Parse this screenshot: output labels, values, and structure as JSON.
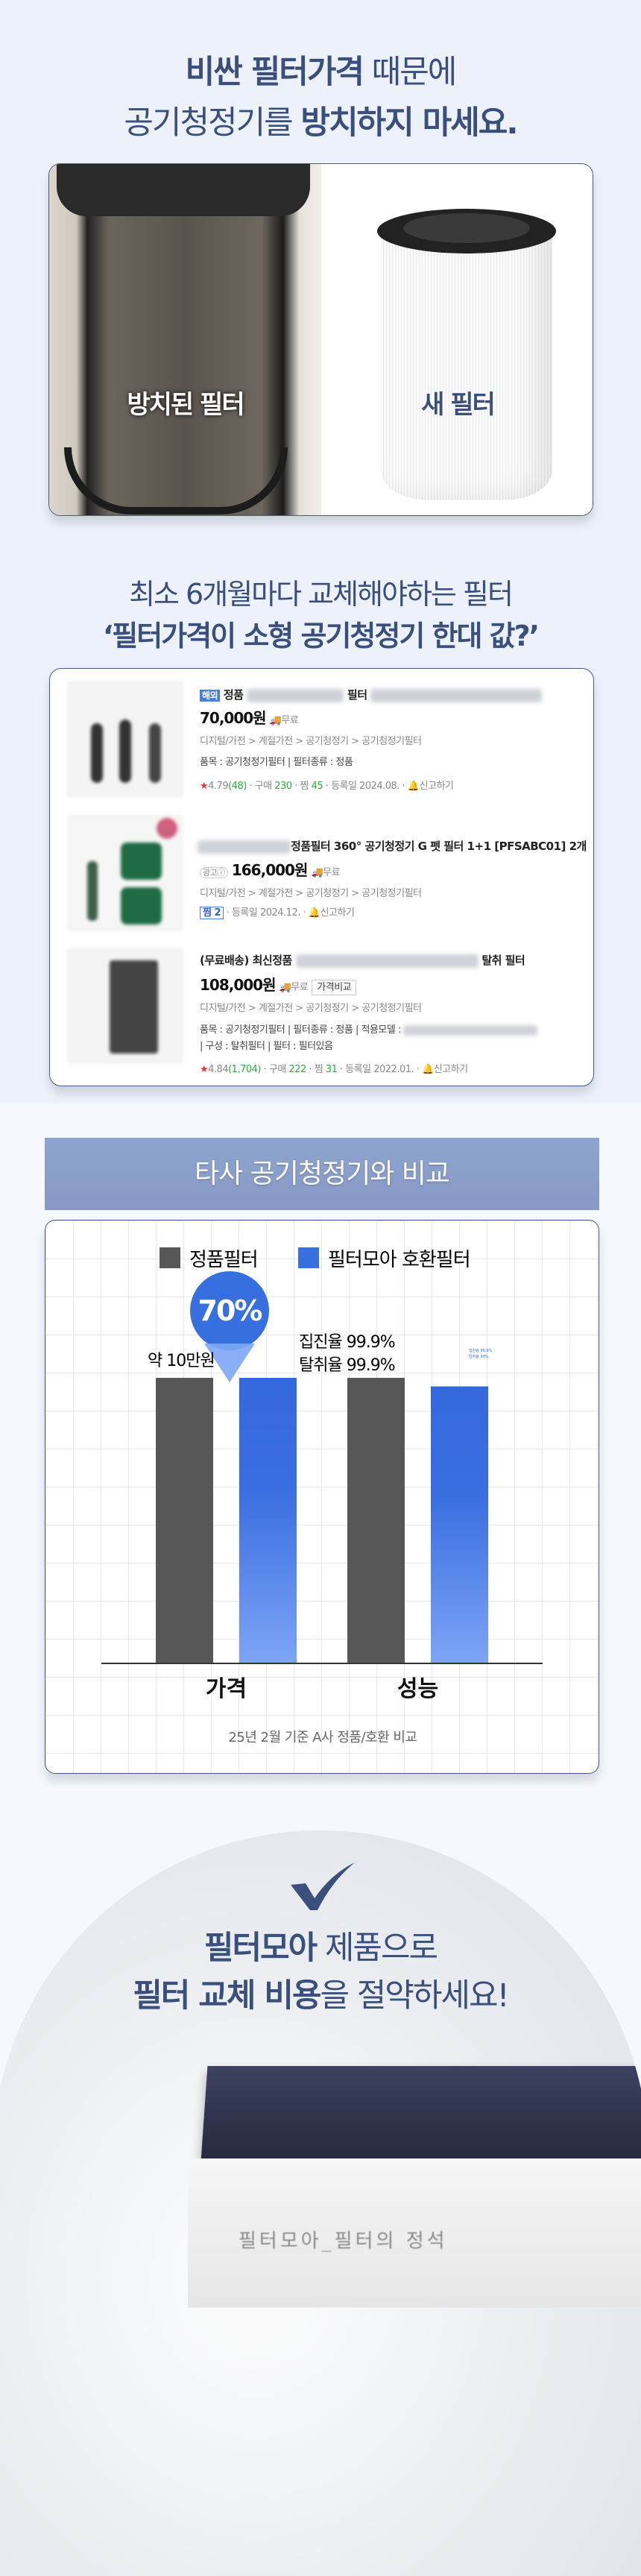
{
  "hero": {
    "line1_bold": "비싼 필터가격",
    "line1_regular": " 때문에",
    "line2_regular": "공기청정기를 ",
    "line2_bold": "방치하지 마세요."
  },
  "photos": {
    "left_label": "방치된 필터",
    "right_label": "새 필터"
  },
  "subtitle": {
    "line1": "최소 6개월마다 교체해야하는 필터",
    "line2": "‘필터가격이 소형 공기청정기 한대 값?’"
  },
  "listings": [
    {
      "badge": "해외",
      "title_a": "정품",
      "title_b": "필터",
      "price": "70,000원",
      "shipping": "무료",
      "category": "디지털/가전 > 계절가전 > 공기청정기 > 공기청정기필터",
      "spec": "품목 : 공기청정기필터 | 필터종류 : 정품",
      "rating": "4.79",
      "reviews": "(48)",
      "purchase_label": "구매",
      "purchases": "230",
      "wish_label": "찜",
      "wishes": "45",
      "registered": "등록일 2024.08.",
      "report": "신고하기"
    },
    {
      "title_b": "정품필터 360° 공기청정기 G 펫 필터 1+1 [PFSABC01] 2개",
      "ad": "광고ⓘ",
      "price": "166,000원",
      "shipping": "무료",
      "category": "디지털/가전 > 계절가전 > 공기청정기 > 공기청정기필터",
      "wish_badge": "찜 2",
      "registered": "등록일 2024.12.",
      "report": "신고하기"
    },
    {
      "title_a": "(무료배송) 최신정품",
      "title_b": "탈취 필터",
      "price": "108,000원",
      "shipping": "무료",
      "compare": "가격비교",
      "category": "디지털/가전 > 계절가전 > 공기청정기 > 공기청정기필터",
      "spec": "품목 : 공기청정기필터 | 필터종류 : 정품 | 적용모델 :",
      "spec2": "| 구성 : 탈취필터 | 필터 : 필터있음",
      "rating": "4.84",
      "reviews": "(1,704)",
      "purchase_label": "구매",
      "purchases": "222",
      "wish_label": "찜",
      "wishes": "31",
      "registered": "등록일 2022.01.",
      "report": "신고하기"
    }
  ],
  "comparison": {
    "banner": "타사 공기청정기와 비교",
    "footnote": "25년 2월 기준 A사 정품/호환 비교"
  },
  "chart_data": {
    "type": "bar",
    "categories": [
      "가격",
      "성능"
    ],
    "series": [
      {
        "name": "정품필터",
        "color": "#575757",
        "values": [
          100,
          100
        ]
      },
      {
        "name": "필터모아 호환필터",
        "color": "#3a6fe0",
        "values": [
          100,
          97
        ]
      }
    ],
    "annotations": {
      "badge": "70%",
      "price_label": "약 10만원",
      "perf_label_1": "집진율 99.9%",
      "perf_label_2": "탈취율 99.9%",
      "small_label_1": "집진율 99.9%",
      "small_label_2": "탈취율 99%"
    },
    "grid": true,
    "legend": "top"
  },
  "closing": {
    "line1_bold": "필터모아",
    "line1_regular": " 제품으로",
    "line2_bold": "필터 교체 비용",
    "line2_regular": "을 절약하세요!",
    "product_print": "필터모아_필터의 정석"
  }
}
